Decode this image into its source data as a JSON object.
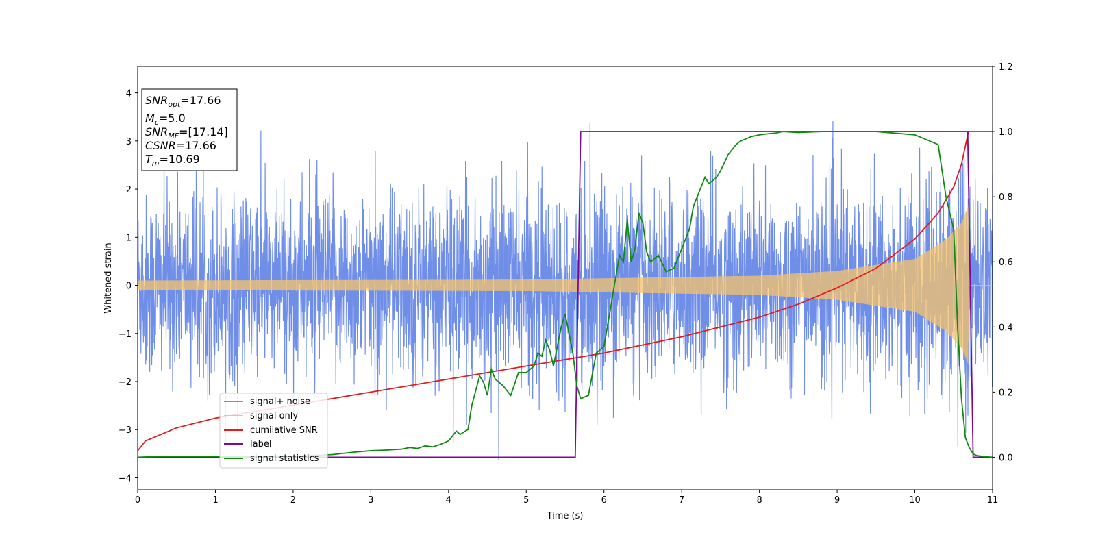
{
  "chart_data": {
    "type": "line",
    "xlabel": "Time (s)",
    "ylabel": "Whitened strain",
    "xlim": [
      0,
      11
    ],
    "ylim": [
      -4.25,
      4.55
    ],
    "y2lim": [
      -0.1,
      1.2
    ],
    "x_ticks": [
      "0",
      "1",
      "2",
      "3",
      "4",
      "5",
      "6",
      "7",
      "8",
      "9",
      "10",
      "11"
    ],
    "x_tick_values": [
      0,
      1,
      2,
      3,
      4,
      5,
      6,
      7,
      8,
      9,
      10,
      11
    ],
    "y_ticks": [
      "4",
      "3",
      "2",
      "1",
      "0",
      "−1",
      "−2",
      "−3",
      "−4"
    ],
    "y_tick_values": [
      4,
      3,
      2,
      1,
      0,
      -1,
      -2,
      -3,
      -4
    ],
    "y2_ticks": [
      "1.2",
      "1.0",
      "0.8",
      "0.6",
      "0.4",
      "0.2",
      "0.0"
    ],
    "y2_tick_values": [
      1.2,
      1.0,
      0.8,
      0.6,
      0.4,
      0.2,
      0.0
    ],
    "grid": false,
    "legend_position": "lower-left",
    "annotation": {
      "snr_opt": {
        "sym": "SNR",
        "sub": "opt",
        "value": "=17.66"
      },
      "mc": {
        "sym": "M",
        "sub": "c",
        "value": "=5.0"
      },
      "snr_mf": {
        "sym": "SNR",
        "sub": "MF",
        "value": "=[17.14]"
      },
      "csnr": {
        "sym": "CSNR",
        "value": "=17.66"
      },
      "tm": {
        "sym": "T",
        "sub": "m",
        "value": "=10.69"
      }
    },
    "series": [
      {
        "name": "signal+ noise",
        "color": "#6f8ee8",
        "axis": "left",
        "description_of_shape": "noisy band",
        "noise_std": 0.95
      },
      {
        "name": "signal only",
        "color": "#f5c36b",
        "axis": "left",
        "envelope": [
          [
            0,
            0.1
          ],
          [
            5,
            0.12
          ],
          [
            8,
            0.2
          ],
          [
            9,
            0.3
          ],
          [
            10,
            0.55
          ],
          [
            10.4,
            0.95
          ],
          [
            10.6,
            1.3
          ],
          [
            10.69,
            1.65
          ],
          [
            10.7,
            0
          ]
        ]
      },
      {
        "name": "cumilative SNR",
        "color": "#e41a1c",
        "axis": "right",
        "x": [
          0,
          0.1,
          0.5,
          1,
          2,
          3,
          4,
          5,
          6,
          7,
          8,
          8.5,
          9,
          9.5,
          10,
          10.3,
          10.5,
          10.6,
          10.69,
          11
        ],
        "y": [
          0.02,
          0.05,
          0.09,
          0.12,
          0.16,
          0.2,
          0.24,
          0.28,
          0.32,
          0.37,
          0.43,
          0.47,
          0.52,
          0.58,
          0.67,
          0.75,
          0.83,
          0.9,
          1.0,
          1.0
        ]
      },
      {
        "name": "label",
        "color": "#7b0c91",
        "axis": "right",
        "x": [
          0,
          5.63,
          5.7,
          10.68,
          10.75,
          11
        ],
        "y": [
          0,
          0,
          1,
          1,
          0,
          0
        ]
      },
      {
        "name": "signal statistics",
        "color": "#118811",
        "axis": "right",
        "x": [
          0,
          0.3,
          1,
          2,
          2.5,
          2.8,
          3.0,
          3.2,
          3.4,
          3.5,
          3.6,
          3.7,
          3.8,
          3.9,
          4.0,
          4.1,
          4.15,
          4.25,
          4.3,
          4.4,
          4.45,
          4.5,
          4.55,
          4.6,
          4.7,
          4.8,
          4.9,
          5.0,
          5.1,
          5.15,
          5.2,
          5.25,
          5.3,
          5.35,
          5.45,
          5.5,
          5.6,
          5.65,
          5.7,
          5.8,
          5.9,
          6.0,
          6.1,
          6.2,
          6.25,
          6.3,
          6.35,
          6.4,
          6.45,
          6.5,
          6.55,
          6.6,
          6.7,
          6.8,
          6.9,
          7.0,
          7.1,
          7.15,
          7.3,
          7.35,
          7.4,
          7.45,
          7.5,
          7.6,
          7.7,
          7.75,
          7.8,
          7.9,
          8.0,
          8.1,
          8.2,
          8.3,
          8.5,
          8.8,
          9.0,
          9.5,
          10.0,
          10.1,
          10.2,
          10.3,
          10.4,
          10.5,
          10.55,
          10.6,
          10.65,
          10.7,
          10.75,
          10.8,
          10.9,
          11.0
        ],
        "y": [
          0,
          0.003,
          0.003,
          0.003,
          0.008,
          0.016,
          0.02,
          0.022,
          0.025,
          0.03,
          0.027,
          0.035,
          0.032,
          0.04,
          0.05,
          0.08,
          0.07,
          0.085,
          0.16,
          0.25,
          0.23,
          0.19,
          0.27,
          0.24,
          0.22,
          0.19,
          0.26,
          0.26,
          0.28,
          0.32,
          0.31,
          0.36,
          0.33,
          0.28,
          0.4,
          0.44,
          0.32,
          0.22,
          0.18,
          0.19,
          0.32,
          0.34,
          0.48,
          0.62,
          0.6,
          0.73,
          0.6,
          0.64,
          0.75,
          0.72,
          0.63,
          0.6,
          0.62,
          0.57,
          0.58,
          0.64,
          0.7,
          0.77,
          0.86,
          0.84,
          0.85,
          0.86,
          0.88,
          0.93,
          0.96,
          0.97,
          0.975,
          0.985,
          0.99,
          0.993,
          0.995,
          1.0,
          0.997,
          1.0,
          1.0,
          1.0,
          0.99,
          0.98,
          0.97,
          0.96,
          0.8,
          0.7,
          0.4,
          0.18,
          0.06,
          0.03,
          0.01,
          0.005,
          0.002,
          0.0
        ]
      }
    ]
  }
}
